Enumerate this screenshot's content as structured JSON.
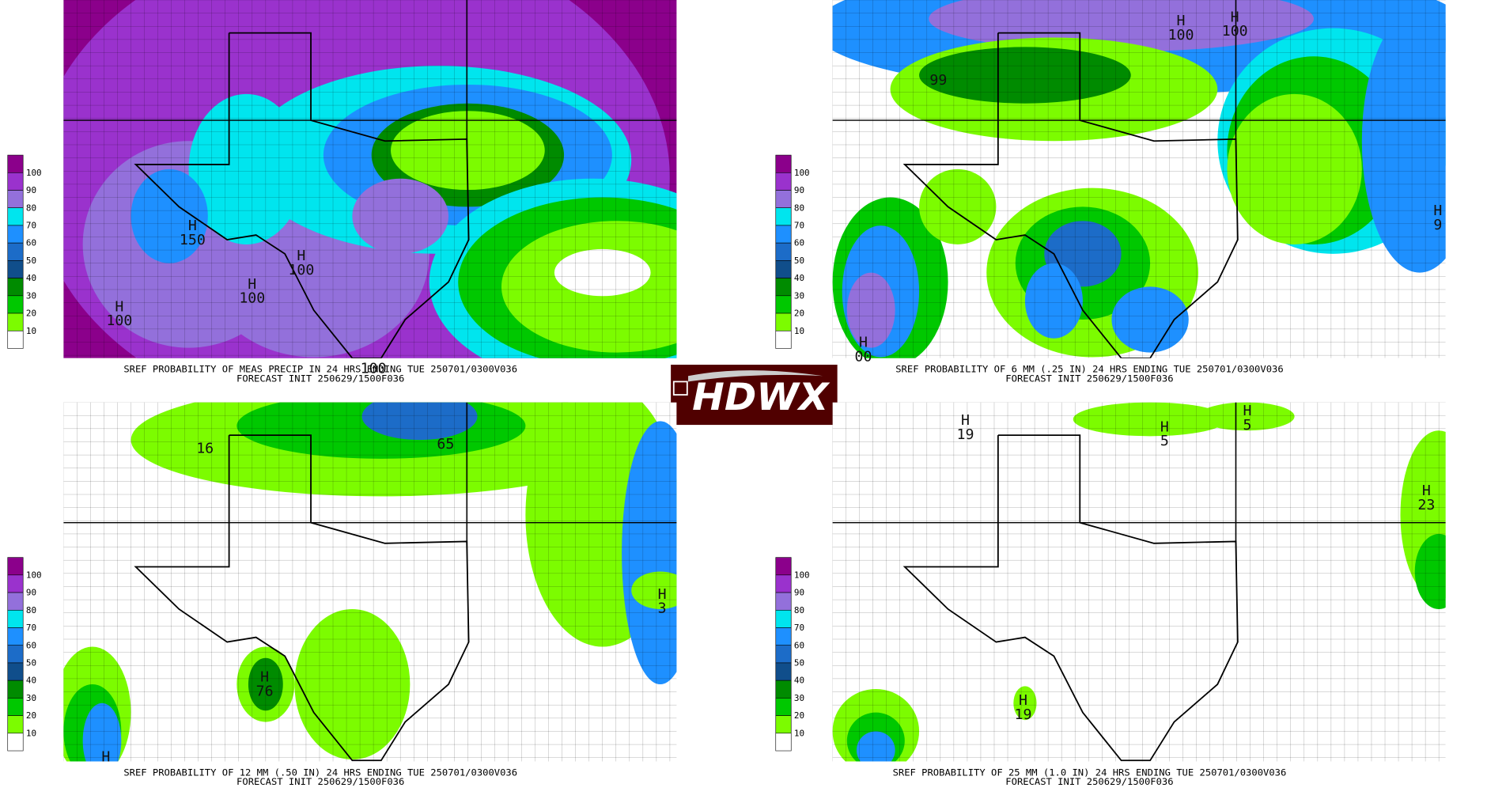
{
  "panels": [
    {
      "caption": "SREF PROBABILITY OF MEAS PRECIP IN 24 HRS ENDING TUE 250701/0300V036",
      "init": "FORECAST INIT 250629/1500F036",
      "highs": [
        {
          "mark": "H",
          "value": "150"
        },
        {
          "mark": "H",
          "value": "100"
        },
        {
          "mark": "H",
          "value": "100"
        },
        {
          "mark": "H",
          "value": "100"
        },
        {
          "mark": "",
          "value": "100"
        }
      ]
    },
    {
      "caption": "SREF PROBABILITY OF 6 MM (.25 IN) 24 HRS ENDING TUE 250701/0300V036",
      "init": "FORECAST INIT 250629/1500F036",
      "highs": [
        {
          "mark": "H",
          "value": "100"
        },
        {
          "mark": "H",
          "value": "100"
        },
        {
          "mark": "",
          "value": "99"
        },
        {
          "mark": "H",
          "value": "9"
        },
        {
          "mark": "H",
          "value": "00"
        }
      ]
    },
    {
      "caption": "SREF PROBABILITY OF 12 MM (.50 IN) 24 HRS ENDING TUE 250701/0300V036",
      "init": "FORECAST INIT 250629/1500F036",
      "highs": [
        {
          "mark": "",
          "value": "16"
        },
        {
          "mark": "",
          "value": "65"
        },
        {
          "mark": "H",
          "value": "76"
        },
        {
          "mark": "H",
          "value": ""
        },
        {
          "mark": "H",
          "value": "3"
        }
      ]
    },
    {
      "caption": "SREF PROBABILITY OF 25 MM (1.0 IN) 24 HRS ENDING TUE 250701/0300V036",
      "init": "FORECAST INIT 250629/1500F036",
      "highs": [
        {
          "mark": "H",
          "value": "19"
        },
        {
          "mark": "H",
          "value": "5"
        },
        {
          "mark": "H",
          "value": "5"
        },
        {
          "mark": "H",
          "value": "23"
        },
        {
          "mark": "H",
          "value": "19"
        }
      ]
    }
  ],
  "legend": {
    "labels": [
      100,
      90,
      80,
      70,
      60,
      50,
      40,
      30,
      20,
      10
    ]
  },
  "logo": {
    "text": "HDWX"
  }
}
